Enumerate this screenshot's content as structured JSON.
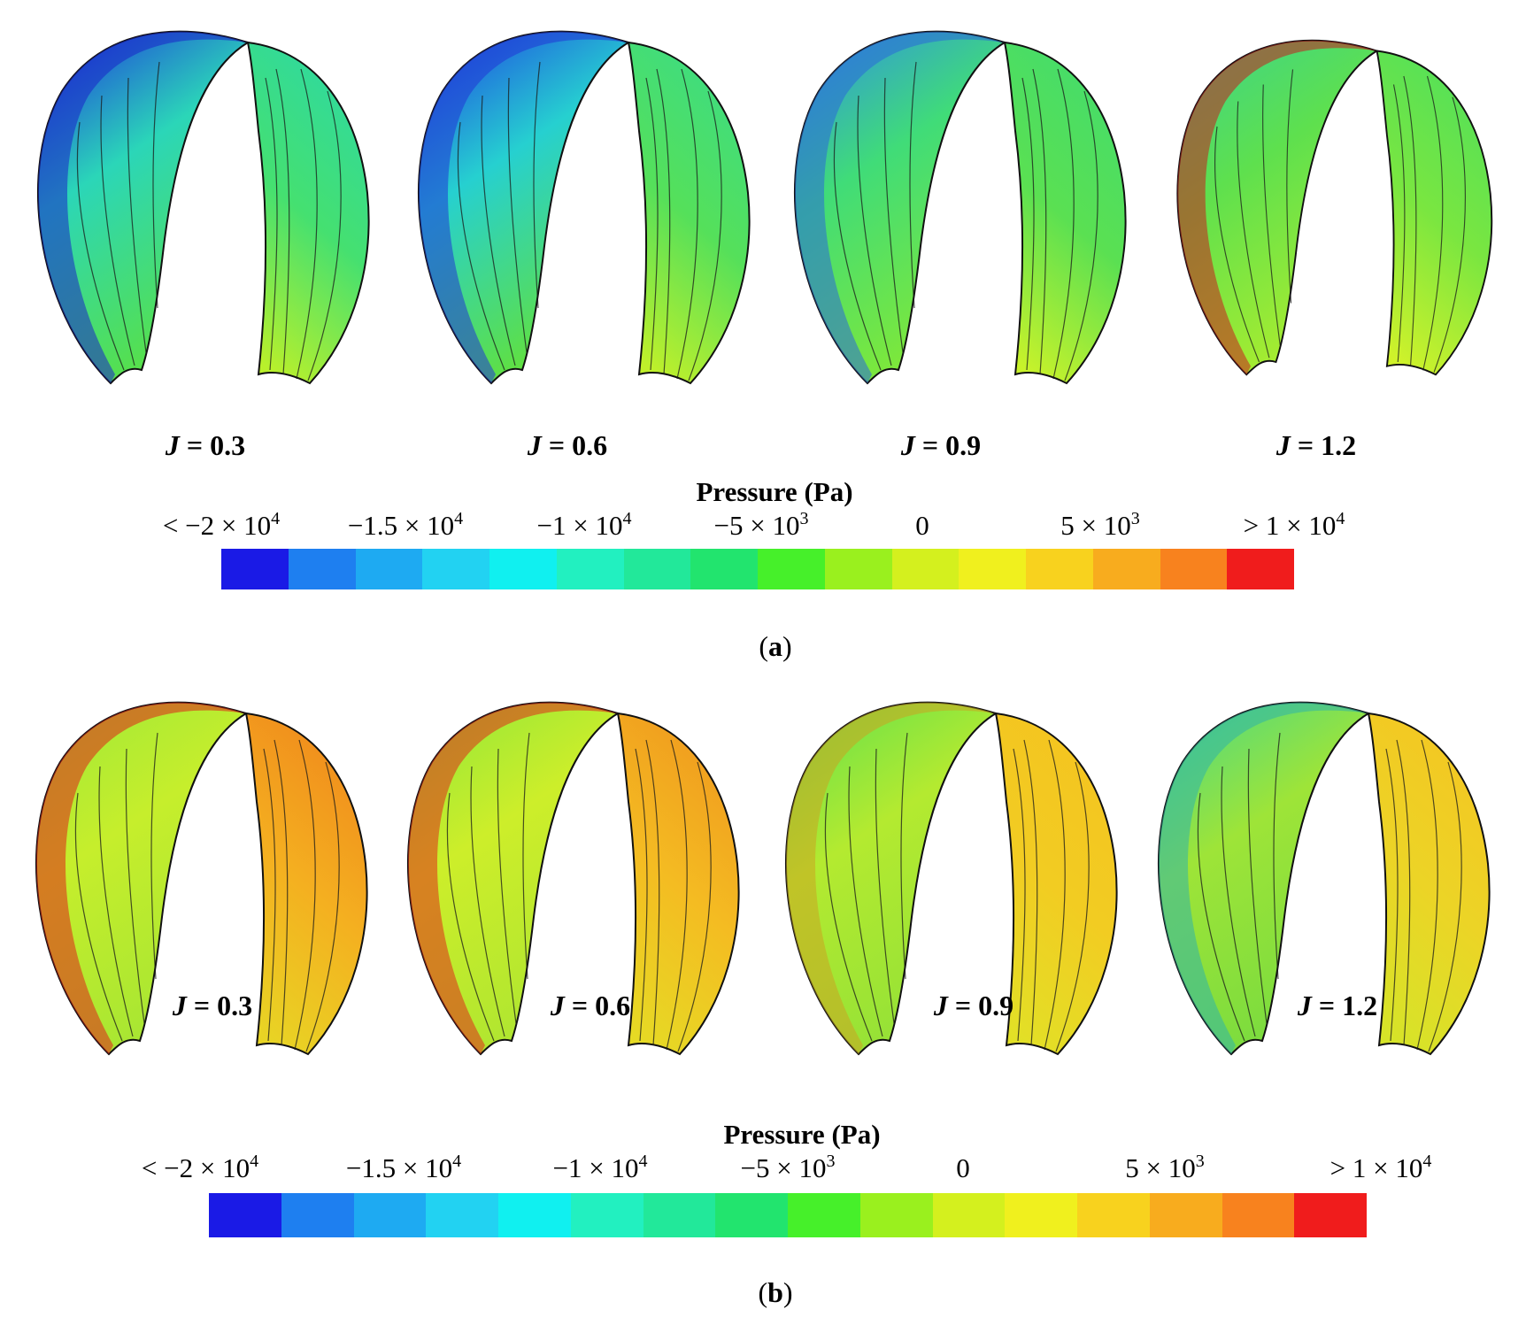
{
  "figure": {
    "background": "#ffffff",
    "panels": [
      {
        "caption_letter": "a",
        "blade_labels": [
          "J = 0.3",
          "J = 0.6",
          "J = 0.9",
          "J = 1.2"
        ],
        "legend": {
          "title": "Pressure (Pa)",
          "ticks": [
            {
              "pre": "< −2 × 10",
              "exp": "4"
            },
            {
              "pre": "−1.5 × 10",
              "exp": "4"
            },
            {
              "pre": "−1 × 10",
              "exp": "4"
            },
            {
              "pre": "−5 × 10",
              "exp": "3"
            },
            {
              "pre": "0",
              "exp": ""
            },
            {
              "pre": "5 × 10",
              "exp": "3"
            },
            {
              "pre": "> 1 × 10",
              "exp": "4"
            }
          ]
        },
        "blade_colors": [
          {
            "left_top": "#1c2ee0",
            "left_mid": "#2bd6b8",
            "left_low": "#57e04a",
            "right_top": "#2fd9a0",
            "right_mid": "#45e070",
            "right_low": "#b9f02b",
            "edge": "#1a24c8"
          },
          {
            "left_top": "#1e3ce4",
            "left_mid": "#26d0d0",
            "left_low": "#60e040",
            "right_top": "#3ddc82",
            "right_mid": "#55e05a",
            "right_low": "#c0f02a",
            "edge": "#2036d6"
          },
          {
            "left_top": "#2e8ee8",
            "left_mid": "#40dc78",
            "left_low": "#7ee83a",
            "right_top": "#44dc6c",
            "right_mid": "#5ae052",
            "right_low": "#c8f22a",
            "edge": "#2a6ad8"
          },
          {
            "left_top": "#3cd48c",
            "left_mid": "#5ee04e",
            "left_low": "#a6ec30",
            "right_top": "#52e05a",
            "right_mid": "#7ae640",
            "right_low": "#d0f22a",
            "edge": "#c81e1e"
          }
        ]
      },
      {
        "caption_letter": "b",
        "blade_labels": [
          "J = 0.3",
          "J = 0.6",
          "J = 0.9",
          "J = 1.2"
        ],
        "legend": {
          "title": "Pressure (Pa)",
          "ticks": [
            {
              "pre": "< −2 × 10",
              "exp": "4"
            },
            {
              "pre": "−1.5 × 10",
              "exp": "4"
            },
            {
              "pre": "−1 × 10",
              "exp": "4"
            },
            {
              "pre": "−5 × 10",
              "exp": "3"
            },
            {
              "pre": "0",
              "exp": ""
            },
            {
              "pre": "5 × 10",
              "exp": "3"
            },
            {
              "pre": "> 1 × 10",
              "exp": "4"
            }
          ]
        },
        "blade_colors": [
          {
            "left_top": "#9ee838",
            "left_mid": "#c6ee2c",
            "left_low": "#a8e632",
            "right_top": "#f08a1c",
            "right_mid": "#f4b020",
            "right_low": "#e8d424",
            "edge": "#e0201a"
          },
          {
            "left_top": "#8ee63a",
            "left_mid": "#cdee2a",
            "left_low": "#b0e630",
            "right_top": "#f09a1e",
            "right_mid": "#f4bc22",
            "right_low": "#e6da24",
            "edge": "#e02a1a"
          },
          {
            "left_top": "#5ee04e",
            "left_mid": "#b4ea30",
            "left_low": "#96e236",
            "right_top": "#f4c420",
            "right_mid": "#f2cc22",
            "right_low": "#e2e026",
            "edge": "#caa420"
          },
          {
            "left_top": "#46d88a",
            "left_mid": "#9ee438",
            "left_low": "#7cdc3e",
            "right_top": "#f4c622",
            "right_mid": "#ecd426",
            "right_low": "#d6e428",
            "edge": "#30b4a8"
          }
        ]
      }
    ],
    "colorbar": [
      "#1a1ae6",
      "#1e7ff0",
      "#1eaaf2",
      "#22d2f2",
      "#10f0f0",
      "#22f0c0",
      "#22e89a",
      "#22e46e",
      "#46f02a",
      "#9af01e",
      "#d4f01e",
      "#f0f01e",
      "#f8d21e",
      "#f8ac1e",
      "#f8821e",
      "#f01c1c"
    ]
  }
}
